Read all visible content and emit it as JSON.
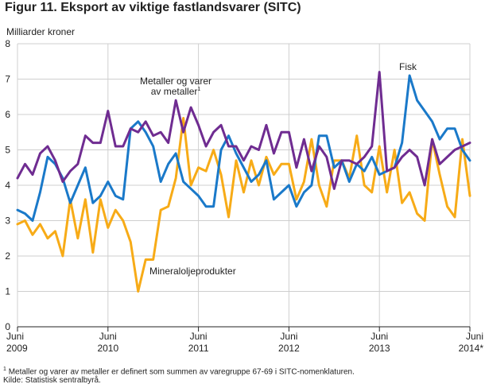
{
  "title": "Figur 11. Eksport av viktige fastlandsvarer (SITC)",
  "footnote": "Metaller og varer av metaller er definert som summen av varegruppe 67-69 i SITC-nomenklaturen.",
  "footnote_mark": "1",
  "source": "Kilde: Statistisk sentralbyrå.",
  "colors": {
    "metaller": "#6f2c91",
    "fisk": "#1a79c9",
    "mineral": "#f7ab17",
    "grid": "#cfcfcf",
    "axis": "#222222"
  },
  "chart_data": {
    "type": "line",
    "title": "Figur 11. Eksport av viktige fastlandsvarer (SITC)",
    "ylabel": "Milliarder kroner",
    "ylim": [
      0,
      8
    ],
    "yticks": [
      0,
      1,
      2,
      3,
      4,
      5,
      6,
      7,
      8
    ],
    "x_start": "2009-06",
    "x_end": "2014-06",
    "xticks": [
      {
        "month_index": 0,
        "label1": "Juni",
        "label2": "2009"
      },
      {
        "month_index": 12,
        "label1": "Juni",
        "label2": "2010"
      },
      {
        "month_index": 24,
        "label1": "Juni",
        "label2": "2011"
      },
      {
        "month_index": 36,
        "label1": "Juni",
        "label2": "2012"
      },
      {
        "month_index": 48,
        "label1": "Juni",
        "label2": "2013"
      },
      {
        "month_index": 60,
        "label1": "Juni",
        "label2": "2014*"
      }
    ],
    "annotations": {
      "metaller_line1": "Metaller og varer",
      "metaller_line2": "av metaller",
      "metaller_sup": "1",
      "fisk": "Fisk",
      "mineral": "Mineraloljeprodukter"
    },
    "series": [
      {
        "key": "metaller",
        "name": "Metaller og varer av metaller",
        "values": [
          4.2,
          4.6,
          4.3,
          4.9,
          5.1,
          4.7,
          4.1,
          4.4,
          4.6,
          5.4,
          5.2,
          5.2,
          6.1,
          5.1,
          5.1,
          5.6,
          5.5,
          5.8,
          5.4,
          5.5,
          5.2,
          6.4,
          5.5,
          6.2,
          5.7,
          5.1,
          5.5,
          5.7,
          5.1,
          5.1,
          4.7,
          5.1,
          5.0,
          5.7,
          4.9,
          5.5,
          5.5,
          4.5,
          5.3,
          4.4,
          5.1,
          4.8,
          3.9,
          4.7,
          4.7,
          4.6,
          4.8,
          5.1,
          7.2,
          4.4,
          4.5,
          4.8,
          5.0,
          4.8,
          4.0,
          5.3,
          4.6,
          4.8,
          5.0,
          5.1,
          5.2
        ]
      },
      {
        "key": "fisk",
        "name": "Fisk",
        "values": [
          3.3,
          3.2,
          3.0,
          3.8,
          4.8,
          4.6,
          4.2,
          3.5,
          4.0,
          4.5,
          3.5,
          3.7,
          4.1,
          3.7,
          3.6,
          5.6,
          5.8,
          5.5,
          5.1,
          4.1,
          4.6,
          4.9,
          4.1,
          3.9,
          3.7,
          3.4,
          3.4,
          5.0,
          5.4,
          4.9,
          4.5,
          4.1,
          4.3,
          4.7,
          3.6,
          3.8,
          4.0,
          3.4,
          3.8,
          4.0,
          5.4,
          5.4,
          4.5,
          4.7,
          4.1,
          4.6,
          4.4,
          4.8,
          4.3,
          4.4,
          4.5,
          5.2,
          7.1,
          6.4,
          6.1,
          5.8,
          5.3,
          5.6,
          5.6,
          5.0,
          4.7
        ]
      },
      {
        "key": "mineral",
        "name": "Mineraloljeprodukter",
        "values": [
          2.9,
          3.0,
          2.6,
          2.9,
          2.5,
          2.7,
          2.0,
          3.6,
          2.5,
          3.6,
          2.1,
          3.6,
          2.8,
          3.3,
          3.0,
          2.4,
          1.0,
          1.9,
          1.9,
          3.3,
          3.4,
          4.2,
          5.9,
          4.0,
          4.5,
          4.4,
          5.0,
          4.3,
          3.1,
          4.7,
          3.8,
          4.7,
          4.0,
          4.8,
          4.3,
          4.6,
          4.6,
          3.6,
          4.1,
          5.3,
          4.0,
          3.4,
          4.7,
          4.7,
          4.2,
          5.4,
          4.0,
          3.8,
          5.1,
          3.8,
          5.0,
          3.5,
          3.8,
          3.2,
          3.0,
          5.3,
          4.3,
          3.4,
          3.1,
          5.3,
          3.7
        ]
      }
    ]
  }
}
